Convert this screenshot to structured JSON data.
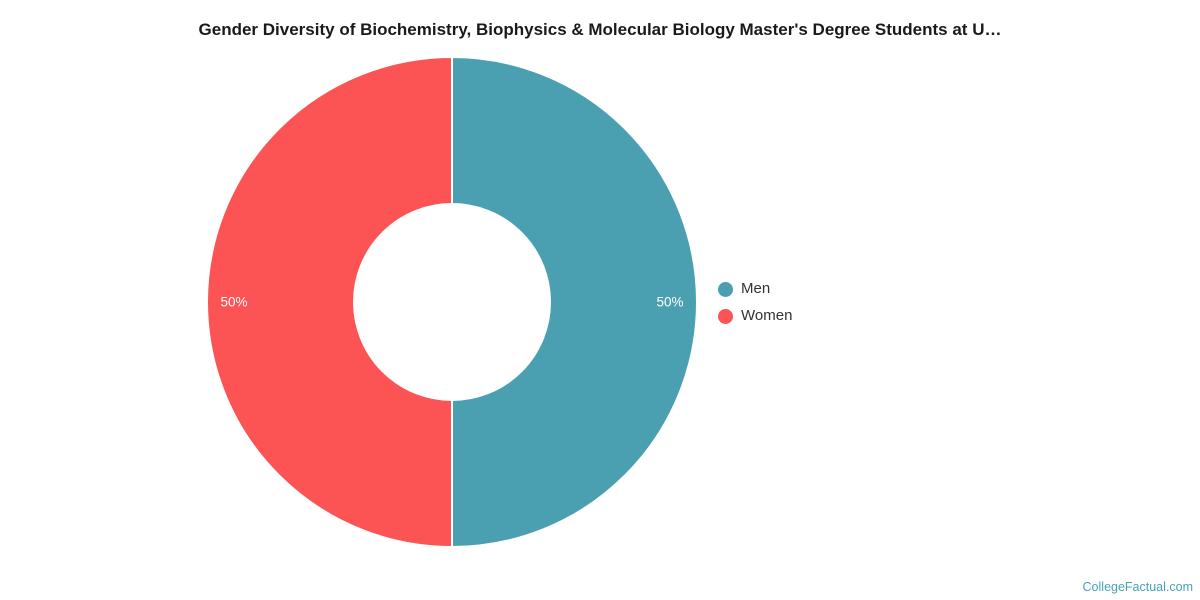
{
  "title": "Gender Diversity of Biochemistry, Biophysics & Molecular Biology Master's Degree Students at U…",
  "footer": {
    "brand": "CollegeFactual.com"
  },
  "chart_data": {
    "type": "pie",
    "donut": true,
    "inner_radius_ratio": 0.4,
    "start_angle_deg": 0,
    "direction": "clockwise",
    "legend_position": "right",
    "data_label_color": "#ffffff",
    "slice_border_color": "#ffffff",
    "series": [
      {
        "name": "Men",
        "value": 50,
        "label": "50%",
        "color": "#4AA0B0"
      },
      {
        "name": "Women",
        "value": 50,
        "label": "50%",
        "color": "#FC5355"
      }
    ]
  }
}
